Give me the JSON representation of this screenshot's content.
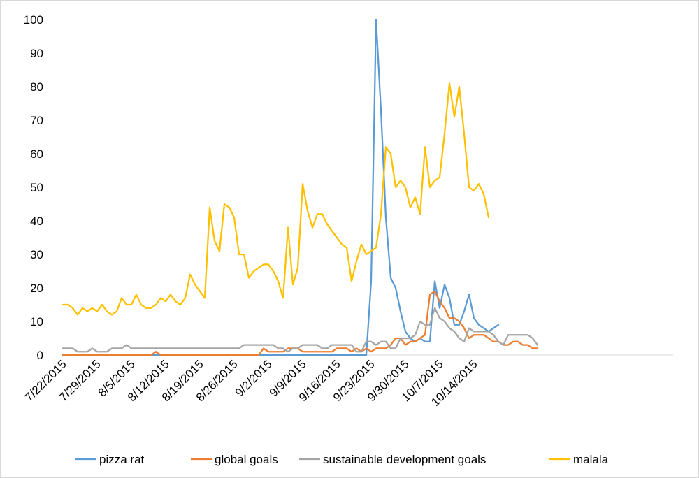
{
  "chart_data": {
    "type": "line",
    "title": "",
    "xlabel": "",
    "ylabel": "",
    "ylim": [
      0,
      100
    ],
    "yticks": [
      "0",
      "10",
      "20",
      "30",
      "40",
      "50",
      "60",
      "70",
      "80",
      "90",
      "100"
    ],
    "xticks": [
      "7/22/2015",
      "7/29/2015",
      "8/5/2015",
      "8/12/2015",
      "8/19/2015",
      "8/26/2015",
      "9/2/2015",
      "9/9/2015",
      "9/16/2015",
      "9/23/2015",
      "9/30/2015",
      "10/7/2015",
      "10/14/2015"
    ],
    "x_start": "7/22/2015",
    "x_end": "10/18/2015",
    "grid": false,
    "legend_position": "bottom",
    "series": [
      {
        "name": "pizza rat",
        "color": "#5b9bd5",
        "values": [
          0,
          0,
          0,
          0,
          0,
          0,
          0,
          0,
          0,
          0,
          0,
          0,
          0,
          0,
          0,
          0,
          0,
          0,
          0,
          0,
          0,
          0,
          0,
          0,
          0,
          0,
          0,
          0,
          0,
          0,
          0,
          0,
          0,
          0,
          0,
          0,
          0,
          0,
          0,
          0,
          0,
          0,
          0,
          0,
          0,
          0,
          0,
          0,
          0,
          0,
          0,
          0,
          0,
          0,
          0,
          0,
          0,
          0,
          0,
          0,
          0,
          0,
          0,
          22,
          100,
          73,
          41,
          23,
          20,
          13,
          7,
          5,
          4,
          5,
          4,
          4,
          22,
          14,
          21,
          17,
          9,
          9,
          13,
          18,
          11,
          9,
          8,
          7,
          8,
          9
        ]
      },
      {
        "name": "global goals",
        "color": "#ed7d31",
        "values": [
          0,
          0,
          0,
          0,
          0,
          0,
          0,
          0,
          0,
          0,
          0,
          0,
          0,
          0,
          0,
          0,
          0,
          0,
          0,
          1,
          0,
          0,
          0,
          0,
          0,
          0,
          0,
          0,
          0,
          0,
          0,
          0,
          0,
          0,
          0,
          0,
          0,
          0,
          0,
          0,
          0,
          2,
          1,
          1,
          1,
          1,
          2,
          2,
          2,
          1,
          1,
          1,
          1,
          1,
          1,
          1,
          2,
          2,
          2,
          1,
          2,
          1,
          2,
          1,
          2,
          2,
          2,
          3,
          5,
          5,
          3,
          4,
          4,
          5,
          6,
          18,
          19,
          16,
          14,
          11,
          11,
          10,
          8,
          5,
          6,
          6,
          6,
          5,
          4,
          4,
          3,
          3,
          4,
          4,
          3,
          3,
          2,
          2
        ]
      },
      {
        "name": "sustainable development goals",
        "color": "#a5a5a5",
        "values": [
          2,
          2,
          2,
          1,
          1,
          1,
          2,
          1,
          1,
          1,
          2,
          2,
          2,
          3,
          2,
          2,
          2,
          2,
          2,
          2,
          2,
          2,
          2,
          2,
          2,
          2,
          2,
          2,
          2,
          2,
          2,
          2,
          2,
          2,
          2,
          2,
          2,
          3,
          3,
          3,
          3,
          3,
          3,
          3,
          2,
          2,
          1,
          2,
          2,
          3,
          3,
          3,
          3,
          2,
          2,
          3,
          3,
          3,
          3,
          3,
          1,
          1,
          4,
          4,
          3,
          4,
          4,
          2,
          2,
          5,
          5,
          5,
          6,
          10,
          9,
          9,
          14,
          11,
          10,
          8,
          7,
          5,
          4,
          8,
          7,
          7,
          7,
          7,
          6,
          4,
          3,
          6,
          6,
          6,
          6,
          6,
          5,
          3
        ]
      },
      {
        "name": "malala",
        "color": "#ffc000",
        "values": [
          15,
          15,
          14,
          12,
          14,
          13,
          14,
          13,
          15,
          13,
          12,
          13,
          17,
          15,
          15,
          18,
          15,
          14,
          14,
          15,
          17,
          16,
          18,
          16,
          15,
          17,
          24,
          21,
          19,
          17,
          44,
          34,
          31,
          45,
          44,
          41,
          30,
          30,
          23,
          25,
          26,
          27,
          27,
          25,
          22,
          17,
          38,
          21,
          26,
          51,
          43,
          38,
          42,
          42,
          39,
          37,
          35,
          33,
          32,
          22,
          28,
          33,
          30,
          31,
          32,
          42,
          62,
          60,
          50,
          52,
          50,
          44,
          47,
          42,
          62,
          50,
          52,
          53,
          66,
          81,
          71,
          80,
          66,
          50,
          49,
          51,
          48,
          41
        ]
      }
    ]
  }
}
